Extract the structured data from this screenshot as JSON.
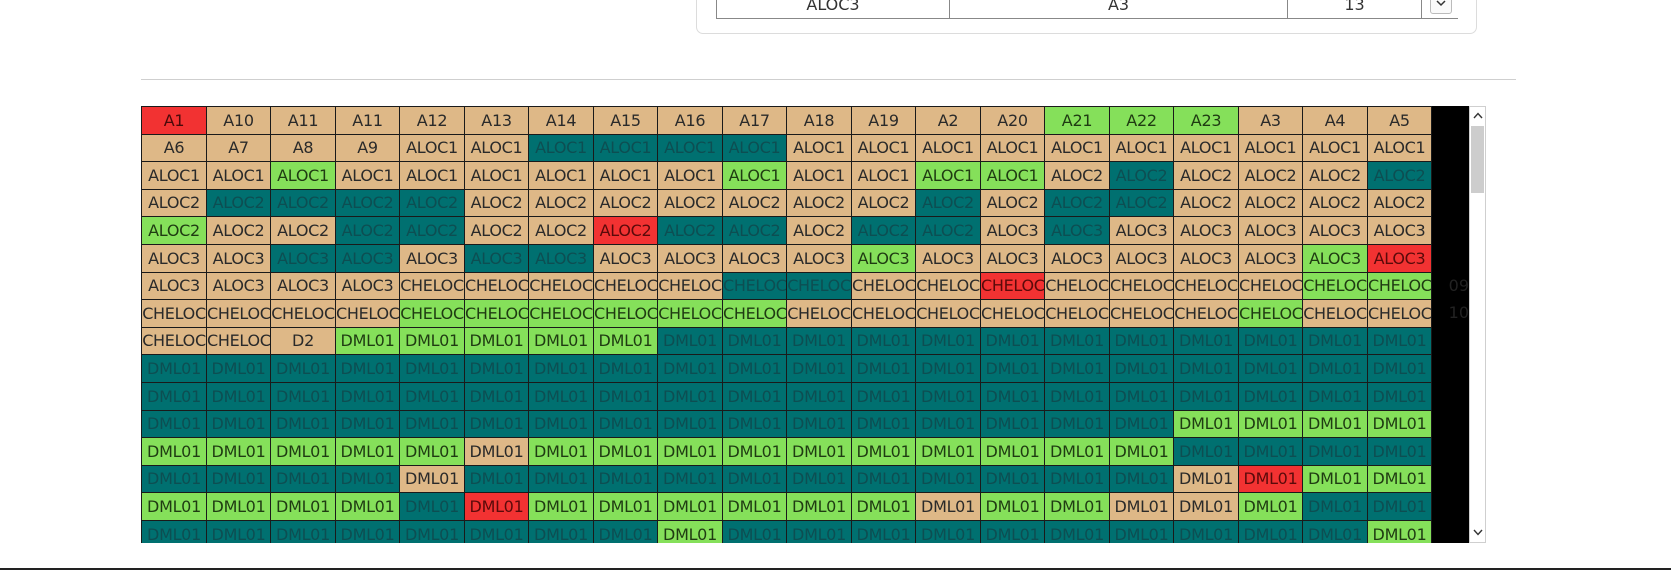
{
  "top_table": {
    "row": [
      "ALOC3",
      "A3",
      "13"
    ]
  },
  "colors": {
    "tan": "#deb887",
    "teal": "#007070",
    "green": "#85e05a",
    "red": "#f23232"
  },
  "grid": {
    "rows": [
      [
        [
          "A1",
          "red"
        ],
        [
          "A10",
          "tan"
        ],
        [
          "A11",
          "tan"
        ],
        [
          "A11",
          "tan"
        ],
        [
          "A12",
          "tan"
        ],
        [
          "A13",
          "tan"
        ],
        [
          "A14",
          "tan"
        ],
        [
          "A15",
          "tan"
        ],
        [
          "A16",
          "tan"
        ],
        [
          "A17",
          "tan"
        ],
        [
          "A18",
          "tan"
        ],
        [
          "A19",
          "tan"
        ],
        [
          "A2",
          "tan"
        ],
        [
          "A20",
          "tan"
        ],
        [
          "A21",
          "green"
        ],
        [
          "A22",
          "green"
        ],
        [
          "A23",
          "green"
        ],
        [
          "A3",
          "tan"
        ],
        [
          "A4",
          "tan"
        ],
        [
          "A5",
          "tan"
        ]
      ],
      [
        [
          "A6",
          "tan"
        ],
        [
          "A7",
          "tan"
        ],
        [
          "A8",
          "tan"
        ],
        [
          "A9",
          "tan"
        ],
        [
          "ALOC1",
          "tan"
        ],
        [
          "ALOC1",
          "tan"
        ],
        [
          "ALOC1",
          "teal"
        ],
        [
          "ALOC1",
          "teal"
        ],
        [
          "ALOC1",
          "teal"
        ],
        [
          "ALOC1",
          "teal"
        ],
        [
          "ALOC1",
          "tan"
        ],
        [
          "ALOC1",
          "tan"
        ],
        [
          "ALOC1",
          "tan"
        ],
        [
          "ALOC1",
          "tan"
        ],
        [
          "ALOC1",
          "tan"
        ],
        [
          "ALOC1",
          "tan"
        ],
        [
          "ALOC1",
          "tan"
        ],
        [
          "ALOC1",
          "tan"
        ],
        [
          "ALOC1",
          "tan"
        ],
        [
          "ALOC1",
          "tan"
        ]
      ],
      [
        [
          "ALOC1",
          "tan"
        ],
        [
          "ALOC1",
          "tan"
        ],
        [
          "ALOC1",
          "green"
        ],
        [
          "ALOC1",
          "tan"
        ],
        [
          "ALOC1",
          "tan"
        ],
        [
          "ALOC1",
          "tan"
        ],
        [
          "ALOC1",
          "tan"
        ],
        [
          "ALOC1",
          "tan"
        ],
        [
          "ALOC1",
          "tan"
        ],
        [
          "ALOC1",
          "green"
        ],
        [
          "ALOC1",
          "tan"
        ],
        [
          "ALOC1",
          "tan"
        ],
        [
          "ALOC1",
          "green"
        ],
        [
          "ALOC1",
          "green"
        ],
        [
          "ALOC2",
          "tan"
        ],
        [
          "ALOC2",
          "teal"
        ],
        [
          "ALOC2",
          "tan"
        ],
        [
          "ALOC2",
          "tan"
        ],
        [
          "ALOC2",
          "tan"
        ],
        [
          "ALOC2",
          "teal"
        ]
      ],
      [
        [
          "ALOC2",
          "tan"
        ],
        [
          "ALOC2",
          "teal"
        ],
        [
          "ALOC2",
          "teal"
        ],
        [
          "ALOC2",
          "teal"
        ],
        [
          "ALOC2",
          "teal"
        ],
        [
          "ALOC2",
          "tan"
        ],
        [
          "ALOC2",
          "tan"
        ],
        [
          "ALOC2",
          "tan"
        ],
        [
          "ALOC2",
          "tan"
        ],
        [
          "ALOC2",
          "tan"
        ],
        [
          "ALOC2",
          "tan"
        ],
        [
          "ALOC2",
          "tan"
        ],
        [
          "ALOC2",
          "teal"
        ],
        [
          "ALOC2",
          "tan"
        ],
        [
          "ALOC2",
          "teal"
        ],
        [
          "ALOC2",
          "teal"
        ],
        [
          "ALOC2",
          "tan"
        ],
        [
          "ALOC2",
          "tan"
        ],
        [
          "ALOC2",
          "tan"
        ],
        [
          "ALOC2",
          "tan"
        ]
      ],
      [
        [
          "ALOC2",
          "green"
        ],
        [
          "ALOC2",
          "tan"
        ],
        [
          "ALOC2",
          "tan"
        ],
        [
          "ALOC2",
          "teal"
        ],
        [
          "ALOC2",
          "teal"
        ],
        [
          "ALOC2",
          "tan"
        ],
        [
          "ALOC2",
          "tan"
        ],
        [
          "ALOC2",
          "red"
        ],
        [
          "ALOC2",
          "teal"
        ],
        [
          "ALOC2",
          "teal"
        ],
        [
          "ALOC2",
          "tan"
        ],
        [
          "ALOC2",
          "teal"
        ],
        [
          "ALOC2",
          "teal"
        ],
        [
          "ALOC3",
          "tan"
        ],
        [
          "ALOC3",
          "teal"
        ],
        [
          "ALOC3",
          "tan"
        ],
        [
          "ALOC3",
          "tan"
        ],
        [
          "ALOC3",
          "tan"
        ],
        [
          "ALOC3",
          "tan"
        ],
        [
          "ALOC3",
          "tan"
        ]
      ],
      [
        [
          "ALOC3",
          "tan"
        ],
        [
          "ALOC3",
          "tan"
        ],
        [
          "ALOC3",
          "teal"
        ],
        [
          "ALOC3",
          "teal"
        ],
        [
          "ALOC3",
          "tan"
        ],
        [
          "ALOC3",
          "teal"
        ],
        [
          "ALOC3",
          "teal"
        ],
        [
          "ALOC3",
          "tan"
        ],
        [
          "ALOC3",
          "tan"
        ],
        [
          "ALOC3",
          "tan"
        ],
        [
          "ALOC3",
          "tan"
        ],
        [
          "ALOC3",
          "green"
        ],
        [
          "ALOC3",
          "tan"
        ],
        [
          "ALOC3",
          "tan"
        ],
        [
          "ALOC3",
          "tan"
        ],
        [
          "ALOC3",
          "tan"
        ],
        [
          "ALOC3",
          "tan"
        ],
        [
          "ALOC3",
          "tan"
        ],
        [
          "ALOC3",
          "green"
        ],
        [
          "ALOC3",
          "red"
        ]
      ],
      [
        [
          "ALOC3",
          "tan"
        ],
        [
          "ALOC3",
          "tan"
        ],
        [
          "ALOC3",
          "tan"
        ],
        [
          "ALOC3",
          "tan"
        ],
        [
          "CHELOC",
          "tan"
        ],
        [
          "CHELOC",
          "tan"
        ],
        [
          "CHELOC",
          "tan"
        ],
        [
          "CHELOC",
          "tan"
        ],
        [
          "CHELOC",
          "tan"
        ],
        [
          "CHELOC",
          "teal"
        ],
        [
          "CHELOC",
          "teal"
        ],
        [
          "CHELOC",
          "tan"
        ],
        [
          "CHELOC",
          "tan"
        ],
        [
          "CHELOC",
          "red"
        ],
        [
          "CHELOC",
          "tan"
        ],
        [
          "CHELOC",
          "tan"
        ],
        [
          "CHELOC",
          "tan"
        ],
        [
          "CHELOC",
          "tan"
        ],
        [
          "CHELOC",
          "green"
        ],
        [
          "CHELOC",
          "green"
        ]
      ],
      [
        [
          "CHELOC",
          "tan"
        ],
        [
          "CHELOC",
          "tan"
        ],
        [
          "CHELOC",
          "tan"
        ],
        [
          "CHELOC",
          "tan"
        ],
        [
          "CHELOC",
          "green"
        ],
        [
          "CHELOC",
          "green"
        ],
        [
          "CHELOC",
          "green"
        ],
        [
          "CHELOC",
          "green"
        ],
        [
          "CHELOC",
          "green"
        ],
        [
          "CHELOC",
          "green"
        ],
        [
          "CHELOC",
          "tan"
        ],
        [
          "CHELOC",
          "tan"
        ],
        [
          "CHELOC",
          "tan"
        ],
        [
          "CHELOC",
          "tan"
        ],
        [
          "CHELOC",
          "tan"
        ],
        [
          "CHELOC",
          "tan"
        ],
        [
          "CHELOC",
          "tan"
        ],
        [
          "CHELOC",
          "green"
        ],
        [
          "CHELOC",
          "tan"
        ],
        [
          "CHELOC",
          "tan"
        ]
      ],
      [
        [
          "CHELOC",
          "tan"
        ],
        [
          "CHELOC",
          "tan"
        ],
        [
          "D2",
          "tan"
        ],
        [
          "DML01",
          "green"
        ],
        [
          "DML01",
          "green"
        ],
        [
          "DML01",
          "green"
        ],
        [
          "DML01",
          "green"
        ],
        [
          "DML01",
          "green"
        ],
        [
          "DML01",
          "teal"
        ],
        [
          "DML01",
          "teal"
        ],
        [
          "DML01",
          "teal"
        ],
        [
          "DML01",
          "teal"
        ],
        [
          "DML01",
          "teal"
        ],
        [
          "DML01",
          "teal"
        ],
        [
          "DML01",
          "teal"
        ],
        [
          "DML01",
          "teal"
        ],
        [
          "DML01",
          "teal"
        ],
        [
          "DML01",
          "teal"
        ],
        [
          "DML01",
          "teal"
        ],
        [
          "DML01",
          "teal"
        ]
      ],
      [
        [
          "DML01",
          "teal"
        ],
        [
          "DML01",
          "teal"
        ],
        [
          "DML01",
          "teal"
        ],
        [
          "DML01",
          "teal"
        ],
        [
          "DML01",
          "teal"
        ],
        [
          "DML01",
          "teal"
        ],
        [
          "DML01",
          "teal"
        ],
        [
          "DML01",
          "teal"
        ],
        [
          "DML01",
          "teal"
        ],
        [
          "DML01",
          "teal"
        ],
        [
          "DML01",
          "teal"
        ],
        [
          "DML01",
          "teal"
        ],
        [
          "DML01",
          "teal"
        ],
        [
          "DML01",
          "teal"
        ],
        [
          "DML01",
          "teal"
        ],
        [
          "DML01",
          "teal"
        ],
        [
          "DML01",
          "teal"
        ],
        [
          "DML01",
          "teal"
        ],
        [
          "DML01",
          "teal"
        ],
        [
          "DML01",
          "teal"
        ]
      ],
      [
        [
          "DML01",
          "teal"
        ],
        [
          "DML01",
          "teal"
        ],
        [
          "DML01",
          "teal"
        ],
        [
          "DML01",
          "teal"
        ],
        [
          "DML01",
          "teal"
        ],
        [
          "DML01",
          "teal"
        ],
        [
          "DML01",
          "teal"
        ],
        [
          "DML01",
          "teal"
        ],
        [
          "DML01",
          "teal"
        ],
        [
          "DML01",
          "teal"
        ],
        [
          "DML01",
          "teal"
        ],
        [
          "DML01",
          "teal"
        ],
        [
          "DML01",
          "teal"
        ],
        [
          "DML01",
          "teal"
        ],
        [
          "DML01",
          "teal"
        ],
        [
          "DML01",
          "teal"
        ],
        [
          "DML01",
          "teal"
        ],
        [
          "DML01",
          "teal"
        ],
        [
          "DML01",
          "teal"
        ],
        [
          "DML01",
          "teal"
        ]
      ],
      [
        [
          "DML01",
          "teal"
        ],
        [
          "DML01",
          "teal"
        ],
        [
          "DML01",
          "teal"
        ],
        [
          "DML01",
          "teal"
        ],
        [
          "DML01",
          "teal"
        ],
        [
          "DML01",
          "teal"
        ],
        [
          "DML01",
          "teal"
        ],
        [
          "DML01",
          "teal"
        ],
        [
          "DML01",
          "teal"
        ],
        [
          "DML01",
          "teal"
        ],
        [
          "DML01",
          "teal"
        ],
        [
          "DML01",
          "teal"
        ],
        [
          "DML01",
          "teal"
        ],
        [
          "DML01",
          "teal"
        ],
        [
          "DML01",
          "teal"
        ],
        [
          "DML01",
          "teal"
        ],
        [
          "DML01",
          "green"
        ],
        [
          "DML01",
          "green"
        ],
        [
          "DML01",
          "green"
        ],
        [
          "DML01",
          "green"
        ]
      ],
      [
        [
          "DML01",
          "green"
        ],
        [
          "DML01",
          "green"
        ],
        [
          "DML01",
          "green"
        ],
        [
          "DML01",
          "green"
        ],
        [
          "DML01",
          "green"
        ],
        [
          "DML01",
          "tan"
        ],
        [
          "DML01",
          "green"
        ],
        [
          "DML01",
          "green"
        ],
        [
          "DML01",
          "green"
        ],
        [
          "DML01",
          "green"
        ],
        [
          "DML01",
          "green"
        ],
        [
          "DML01",
          "green"
        ],
        [
          "DML01",
          "green"
        ],
        [
          "DML01",
          "green"
        ],
        [
          "DML01",
          "green"
        ],
        [
          "DML01",
          "green"
        ],
        [
          "DML01",
          "teal"
        ],
        [
          "DML01",
          "teal"
        ],
        [
          "DML01",
          "teal"
        ],
        [
          "DML01",
          "teal"
        ]
      ],
      [
        [
          "DML01",
          "teal"
        ],
        [
          "DML01",
          "teal"
        ],
        [
          "DML01",
          "teal"
        ],
        [
          "DML01",
          "teal"
        ],
        [
          "DML01",
          "tan"
        ],
        [
          "DML01",
          "teal"
        ],
        [
          "DML01",
          "teal"
        ],
        [
          "DML01",
          "teal"
        ],
        [
          "DML01",
          "teal"
        ],
        [
          "DML01",
          "teal"
        ],
        [
          "DML01",
          "teal"
        ],
        [
          "DML01",
          "teal"
        ],
        [
          "DML01",
          "teal"
        ],
        [
          "DML01",
          "teal"
        ],
        [
          "DML01",
          "teal"
        ],
        [
          "DML01",
          "teal"
        ],
        [
          "DML01",
          "tan"
        ],
        [
          "DML01",
          "red"
        ],
        [
          "DML01",
          "green"
        ],
        [
          "DML01",
          "green"
        ]
      ],
      [
        [
          "DML01",
          "green"
        ],
        [
          "DML01",
          "green"
        ],
        [
          "DML01",
          "green"
        ],
        [
          "DML01",
          "green"
        ],
        [
          "DML01",
          "teal"
        ],
        [
          "DML01",
          "red"
        ],
        [
          "DML01",
          "green"
        ],
        [
          "DML01",
          "green"
        ],
        [
          "DML01",
          "green"
        ],
        [
          "DML01",
          "green"
        ],
        [
          "DML01",
          "green"
        ],
        [
          "DML01",
          "green"
        ],
        [
          "DML01",
          "tan"
        ],
        [
          "DML01",
          "green"
        ],
        [
          "DML01",
          "green"
        ],
        [
          "DML01",
          "tan"
        ],
        [
          "DML01",
          "tan"
        ],
        [
          "DML01",
          "green"
        ],
        [
          "DML01",
          "teal"
        ],
        [
          "DML01",
          "teal"
        ]
      ],
      [
        [
          "DML01",
          "teal"
        ],
        [
          "DML01",
          "teal"
        ],
        [
          "DML01",
          "teal"
        ],
        [
          "DML01",
          "teal"
        ],
        [
          "DML01",
          "teal"
        ],
        [
          "DML01",
          "teal"
        ],
        [
          "DML01",
          "teal"
        ],
        [
          "DML01",
          "teal"
        ],
        [
          "DML01",
          "green"
        ],
        [
          "DML01",
          "teal"
        ],
        [
          "DML01",
          "teal"
        ],
        [
          "DML01",
          "teal"
        ],
        [
          "DML01",
          "teal"
        ],
        [
          "DML01",
          "teal"
        ],
        [
          "DML01",
          "teal"
        ],
        [
          "DML01",
          "teal"
        ],
        [
          "DML01",
          "teal"
        ],
        [
          "DML01",
          "teal"
        ],
        [
          "DML01",
          "teal"
        ],
        [
          "DML01",
          "green"
        ]
      ]
    ],
    "row_overflow_labels": [
      "",
      "",
      "",
      "",
      "",
      "",
      "09",
      "10",
      "",
      "",
      "",
      "",
      "",
      "",
      "",
      ""
    ]
  },
  "scrollbar": {
    "up_icon": "chevron-up-icon",
    "down_icon": "chevron-down-icon"
  }
}
